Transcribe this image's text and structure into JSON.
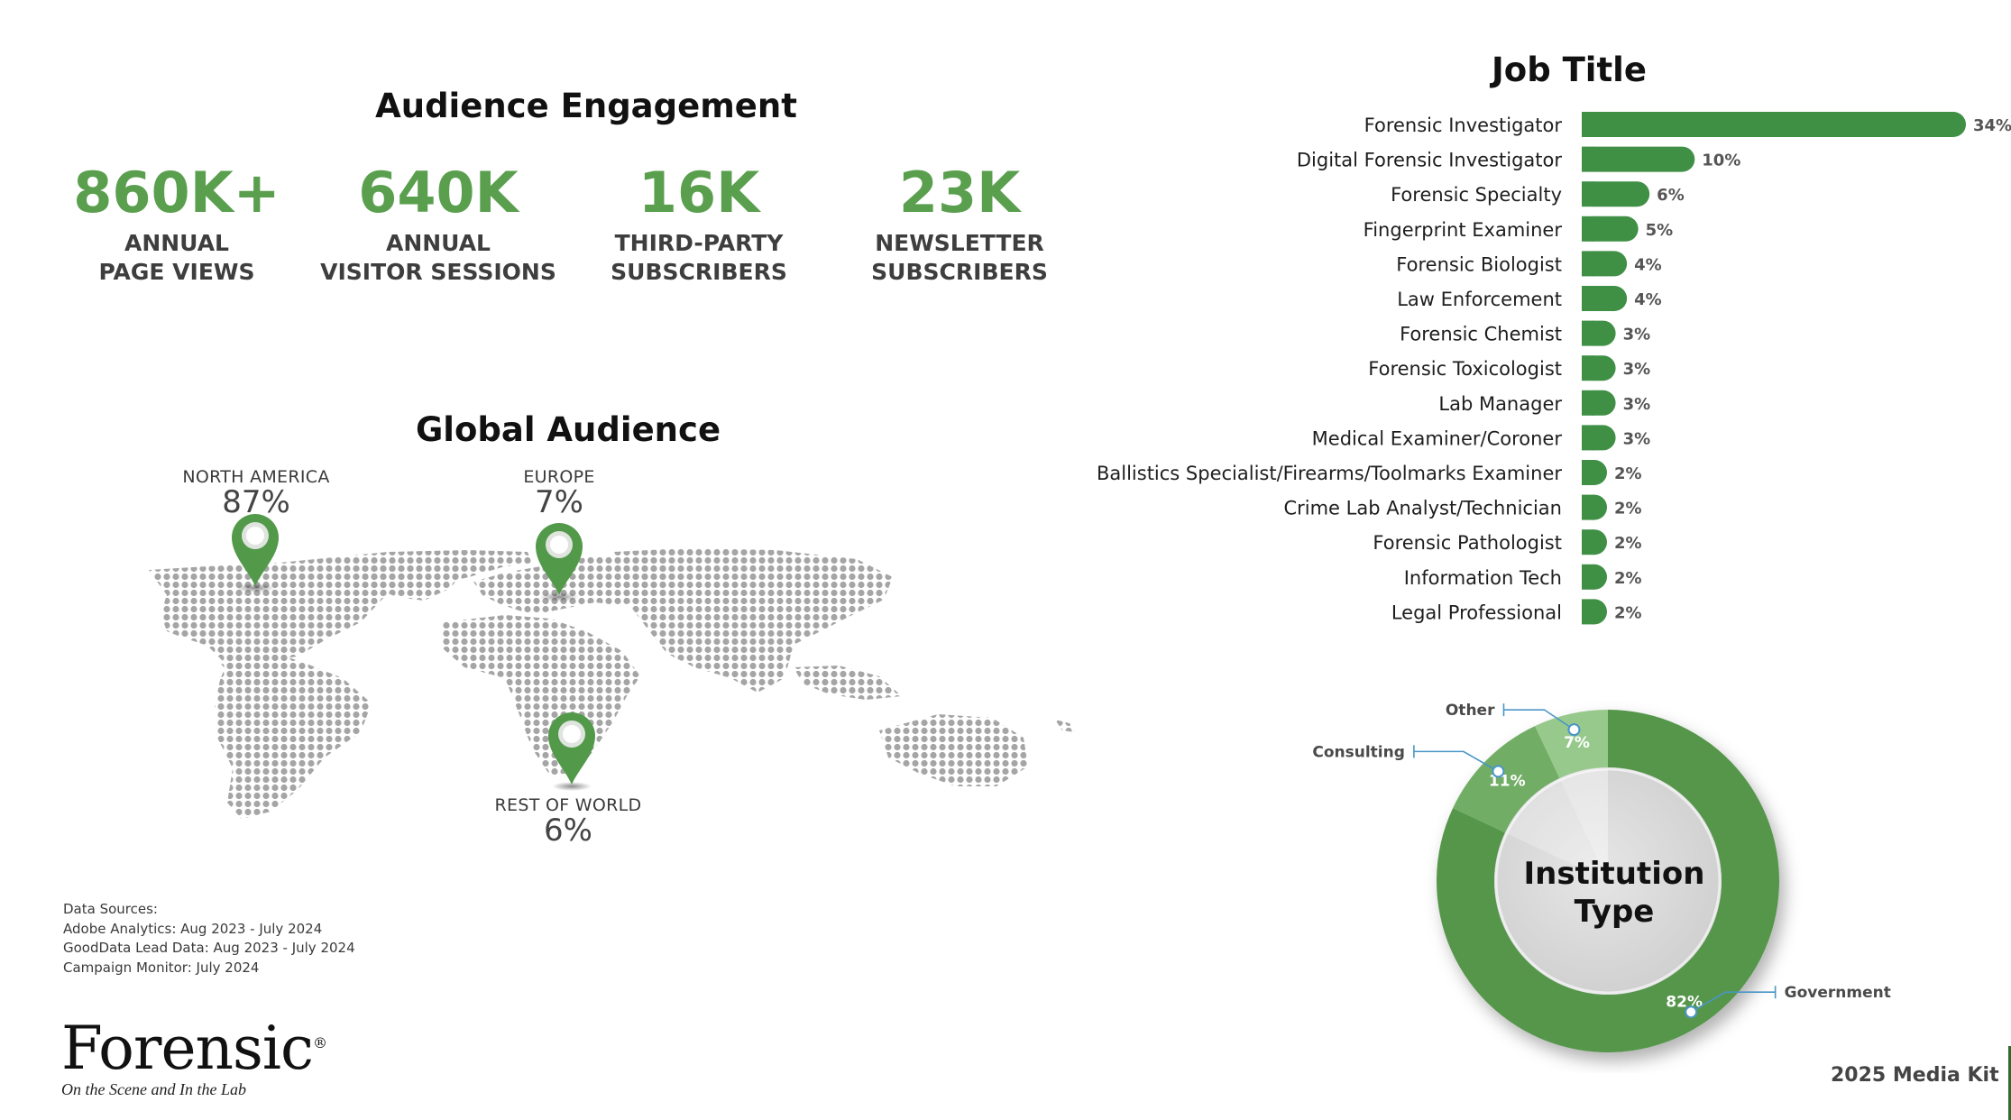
{
  "engagement": {
    "title": "Audience Engagement",
    "stats": [
      {
        "value": "860K+",
        "line1": "ANNUAL",
        "line2": "PAGE VIEWS"
      },
      {
        "value": "640K",
        "line1": "ANNUAL",
        "line2": "VISITOR SESSIONS"
      },
      {
        "value": "16K",
        "line1": "THIRD-PARTY",
        "line2": "SUBSCRIBERS"
      },
      {
        "value": "23K",
        "line1": "NEWSLETTER",
        "line2": "SUBSCRIBERS"
      }
    ]
  },
  "global": {
    "title": "Global Audience",
    "regions": [
      {
        "name": "NORTH AMERICA",
        "pct": "87%"
      },
      {
        "name": "EUROPE",
        "pct": "7%"
      },
      {
        "name": "REST OF WORLD",
        "pct": "6%"
      }
    ]
  },
  "sources": {
    "heading": "Data Sources:",
    "lines": [
      "Adobe Analytics: Aug 2023 - July 2024",
      "GoodData Lead Data: Aug 2023 - July 2024",
      "Campaign Monitor: July 2024"
    ]
  },
  "logo": {
    "word": "Forensic",
    "registered": "®",
    "tagline": "On the Scene and In the Lab"
  },
  "footer": {
    "media_kit": "2025 Media Kit"
  },
  "colors": {
    "accent_green": "#5a9f4e",
    "bar_green": "#3f8f45",
    "donut_government": "#57964c",
    "donut_consulting": "#72ad66",
    "donut_other": "#97c98c",
    "map_gray": "#a5a5a5",
    "callout_blue": "#4a95c7"
  },
  "chart_data": [
    {
      "type": "bar",
      "orientation": "horizontal",
      "title": "Job Title",
      "categories": [
        "Forensic Investigator",
        "Digital Forensic Investigator",
        "Forensic Specialty",
        "Fingerprint Examiner",
        "Forensic Biologist",
        "Law Enforcement",
        "Forensic Chemist",
        "Forensic Toxicologist",
        "Lab Manager",
        "Medical Examiner/Coroner",
        "Ballistics Specialist/Firearms/Toolmarks Examiner",
        "Crime Lab Analyst/Technician",
        "Forensic Pathologist",
        "Information Tech",
        "Legal Professional"
      ],
      "values": [
        34,
        10,
        6,
        5,
        4,
        4,
        3,
        3,
        3,
        3,
        2,
        2,
        2,
        2,
        2
      ],
      "value_labels": [
        "34%",
        "10%",
        "6%",
        "5%",
        "4%",
        "4%",
        "3%",
        "3%",
        "3%",
        "3%",
        "2%",
        "2%",
        "2%",
        "2%",
        "2%"
      ],
      "unit": "%"
    },
    {
      "type": "pie",
      "variant": "donut",
      "center_label_line1": "Institution",
      "center_label_line2": "Type",
      "slices": [
        {
          "label": "Government",
          "value": 82,
          "value_label": "82%",
          "color": "#57964c"
        },
        {
          "label": "Consulting",
          "value": 11,
          "value_label": "11%",
          "color": "#72ad66"
        },
        {
          "label": "Other",
          "value": 7,
          "value_label": "7%",
          "color": "#97c98c"
        }
      ]
    }
  ]
}
